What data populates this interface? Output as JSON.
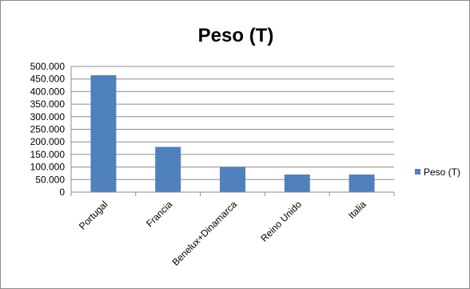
{
  "chart_data": {
    "type": "bar",
    "title": "Peso (T)",
    "xlabel": "",
    "ylabel": "",
    "categories": [
      "Portugal",
      "Francia",
      "Benelux+Dinamarca",
      "Reino Unido",
      "Italia"
    ],
    "series": [
      {
        "name": "Peso (T)",
        "values": [
          465000,
          180000,
          100000,
          70000,
          70000
        ]
      }
    ],
    "ylim": [
      0,
      500000
    ],
    "yticks": [
      0,
      50000,
      100000,
      150000,
      200000,
      250000,
      300000,
      350000,
      400000,
      450000,
      500000
    ],
    "ytick_labels": [
      "0",
      "50.000",
      "100.000",
      "150.000",
      "200.000",
      "250.000",
      "300.000",
      "350.000",
      "400.000",
      "450.000",
      "500.000"
    ],
    "grid": true,
    "legend_position": "right",
    "colors": {
      "bar": "#4f81bd",
      "grid": "#8c8c8c",
      "axis": "#8c8c8c"
    }
  }
}
